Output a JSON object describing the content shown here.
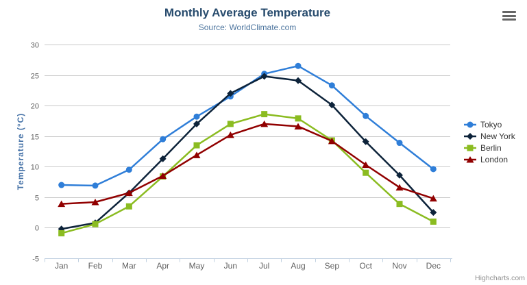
{
  "header": {
    "title": "Monthly Average Temperature",
    "subtitle": "Source: WorldClimate.com"
  },
  "credits": {
    "label": "Highcharts.com"
  },
  "chart_data": {
    "type": "line",
    "title": "Monthly Average Temperature",
    "subtitle": "Source: WorldClimate.com",
    "xlabel": "",
    "ylabel": "Temperature (°C)",
    "ylim": [
      -5,
      30
    ],
    "ytick_interval": 5,
    "grid": true,
    "legend_position": "right",
    "categories": [
      "Jan",
      "Feb",
      "Mar",
      "Apr",
      "May",
      "Jun",
      "Jul",
      "Aug",
      "Sep",
      "Oct",
      "Nov",
      "Dec"
    ],
    "series": [
      {
        "name": "Tokyo",
        "color": "#2f7ed8",
        "marker": "circle",
        "values": [
          7.0,
          6.9,
          9.5,
          14.5,
          18.2,
          21.5,
          25.2,
          26.5,
          23.3,
          18.3,
          13.9,
          9.6
        ]
      },
      {
        "name": "New York",
        "color": "#0d233a",
        "marker": "diamond",
        "values": [
          -0.2,
          0.8,
          5.7,
          11.3,
          17.0,
          22.0,
          24.8,
          24.1,
          20.1,
          14.1,
          8.6,
          2.5
        ]
      },
      {
        "name": "Berlin",
        "color": "#8bbc21",
        "marker": "square",
        "values": [
          -0.9,
          0.6,
          3.5,
          8.4,
          13.5,
          17.0,
          18.6,
          17.9,
          14.3,
          9.0,
          3.9,
          1.0
        ]
      },
      {
        "name": "London",
        "color": "#910000",
        "marker": "triangle-up",
        "values": [
          3.9,
          4.2,
          5.7,
          8.5,
          11.9,
          15.2,
          17.0,
          16.6,
          14.2,
          10.3,
          6.6,
          4.8
        ]
      }
    ],
    "axis_colors": {
      "grid": "#c8c8c8",
      "axis_line": "#c0d0e0",
      "tick_label": "#606060"
    }
  }
}
